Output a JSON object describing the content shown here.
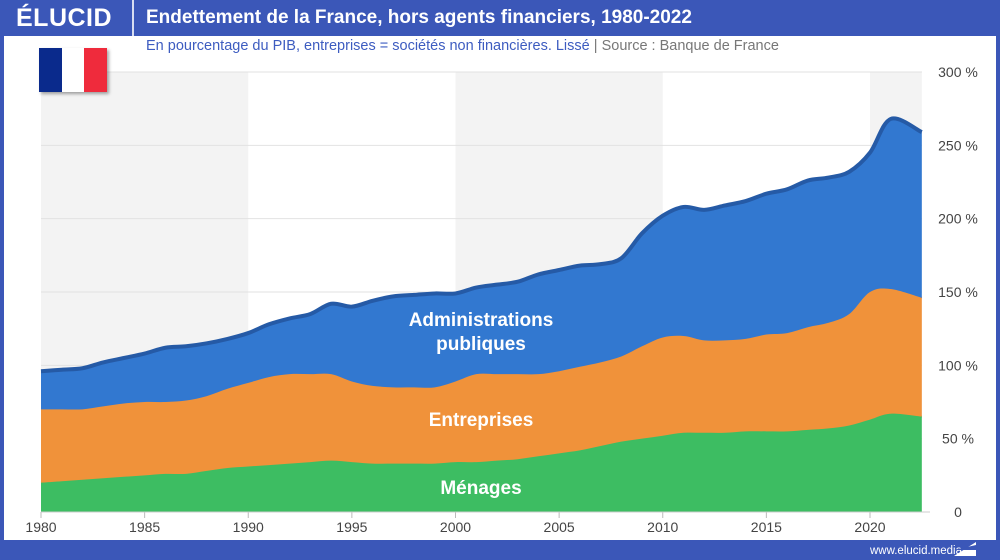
{
  "header": {
    "logo": "ÉLUCID",
    "title": "Endettement de la France, hors agents financiers, 1980-2022"
  },
  "subtitle": {
    "text": "En pourcentage du PIB, entreprises = sociétés non financières. Lissé",
    "separator": "|",
    "source": "Source : Banque de France"
  },
  "footer": {
    "url": "www.elucid.media"
  },
  "flag": {
    "colors": [
      "#0a2a8c",
      "#ffffff",
      "#ef2b3c"
    ]
  },
  "chart_data": {
    "type": "area",
    "stacked": true,
    "title": "Endettement de la France, hors agents financiers, 1980-2022",
    "x": [
      1980,
      1981,
      1982,
      1983,
      1984,
      1985,
      1986,
      1987,
      1988,
      1989,
      1990,
      1991,
      1992,
      1993,
      1994,
      1995,
      1996,
      1997,
      1998,
      1999,
      2000,
      2001,
      2002,
      2003,
      2004,
      2005,
      2006,
      2007,
      2008,
      2009,
      2010,
      2011,
      2012,
      2013,
      2014,
      2015,
      2016,
      2017,
      2018,
      2019,
      2020,
      2021,
      2022.5
    ],
    "series": [
      {
        "name": "Ménages",
        "color": "#3dbd62",
        "values": [
          20,
          21,
          22,
          23,
          24,
          25,
          26,
          26,
          28,
          30,
          31,
          32,
          33,
          34,
          35,
          34,
          33,
          33,
          33,
          33,
          34,
          34,
          35,
          36,
          38,
          40,
          42,
          45,
          48,
          50,
          52,
          54,
          54,
          54,
          55,
          55,
          55,
          56,
          57,
          59,
          63,
          67,
          65
        ]
      },
      {
        "name": "Entreprises",
        "color": "#f0923a",
        "values": [
          50,
          49,
          48,
          49,
          50,
          50,
          49,
          50,
          51,
          54,
          57,
          60,
          61,
          60,
          59,
          55,
          53,
          52,
          52,
          52,
          55,
          60,
          59,
          58,
          56,
          56,
          57,
          57,
          58,
          63,
          67,
          66,
          63,
          63,
          63,
          66,
          67,
          70,
          72,
          76,
          87,
          85,
          81
        ]
      },
      {
        "name": "Administrations publiques",
        "color": "#3278d0",
        "line_color": "#255aa6",
        "values": [
          26,
          27,
          28,
          30,
          31,
          33,
          37,
          37,
          36,
          34,
          34,
          36,
          38,
          41,
          48,
          51,
          58,
          62,
          63,
          64,
          60,
          59,
          61,
          63,
          68,
          69,
          69,
          67,
          67,
          77,
          83,
          88,
          89,
          92,
          94,
          96,
          98,
          100,
          99,
          97,
          95,
          116,
          113
        ]
      }
    ],
    "area_labels": [
      "Administrations",
      "publiques",
      "Entreprises",
      "Ménages"
    ],
    "xticks": [
      1980,
      1985,
      1990,
      1995,
      2000,
      2005,
      2010,
      2015,
      2020
    ],
    "yticks": [
      0,
      50,
      100,
      150,
      200,
      250,
      300
    ],
    "ytick_labels": [
      "0",
      "50 %",
      "100 %",
      "150 %",
      "200 %",
      "250 %",
      "300 %"
    ],
    "ylim": [
      0,
      300
    ],
    "xlim": [
      1980,
      2022.5
    ],
    "yaxis_side": "right",
    "grid": true
  }
}
